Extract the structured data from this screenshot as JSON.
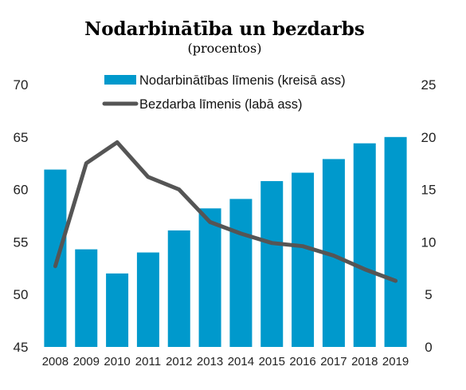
{
  "chart_data": {
    "type": "bar",
    "title": "Nodarbinātība un bezdarbs",
    "subtitle": "(procentos)",
    "categories": [
      "2008",
      "2009",
      "2010",
      "2011",
      "2012",
      "2013",
      "2014",
      "2015",
      "2016",
      "2017",
      "2018",
      "2019"
    ],
    "series": [
      {
        "name": "Nodarbinātības līmenis (kreisā ass)",
        "type": "bar",
        "axis": "left",
        "color": "#0099cc",
        "values": [
          61.9,
          54.3,
          52.0,
          54.0,
          56.1,
          58.2,
          59.1,
          60.8,
          61.6,
          62.9,
          64.4,
          65.0
        ]
      },
      {
        "name": "Bezdarba līmenis (labā ass)",
        "type": "line",
        "axis": "right",
        "color": "#555555",
        "values": [
          7.7,
          17.5,
          19.5,
          16.2,
          15.0,
          11.9,
          10.8,
          9.9,
          9.6,
          8.7,
          7.4,
          6.3
        ]
      }
    ],
    "y_left": {
      "min": 45,
      "max": 70,
      "ticks": [
        45,
        50,
        55,
        60,
        65,
        70
      ]
    },
    "y_right": {
      "min": 0,
      "max": 25,
      "ticks": [
        0,
        5,
        10,
        15,
        20,
        25
      ]
    },
    "grid": false,
    "legend_position": "top"
  }
}
